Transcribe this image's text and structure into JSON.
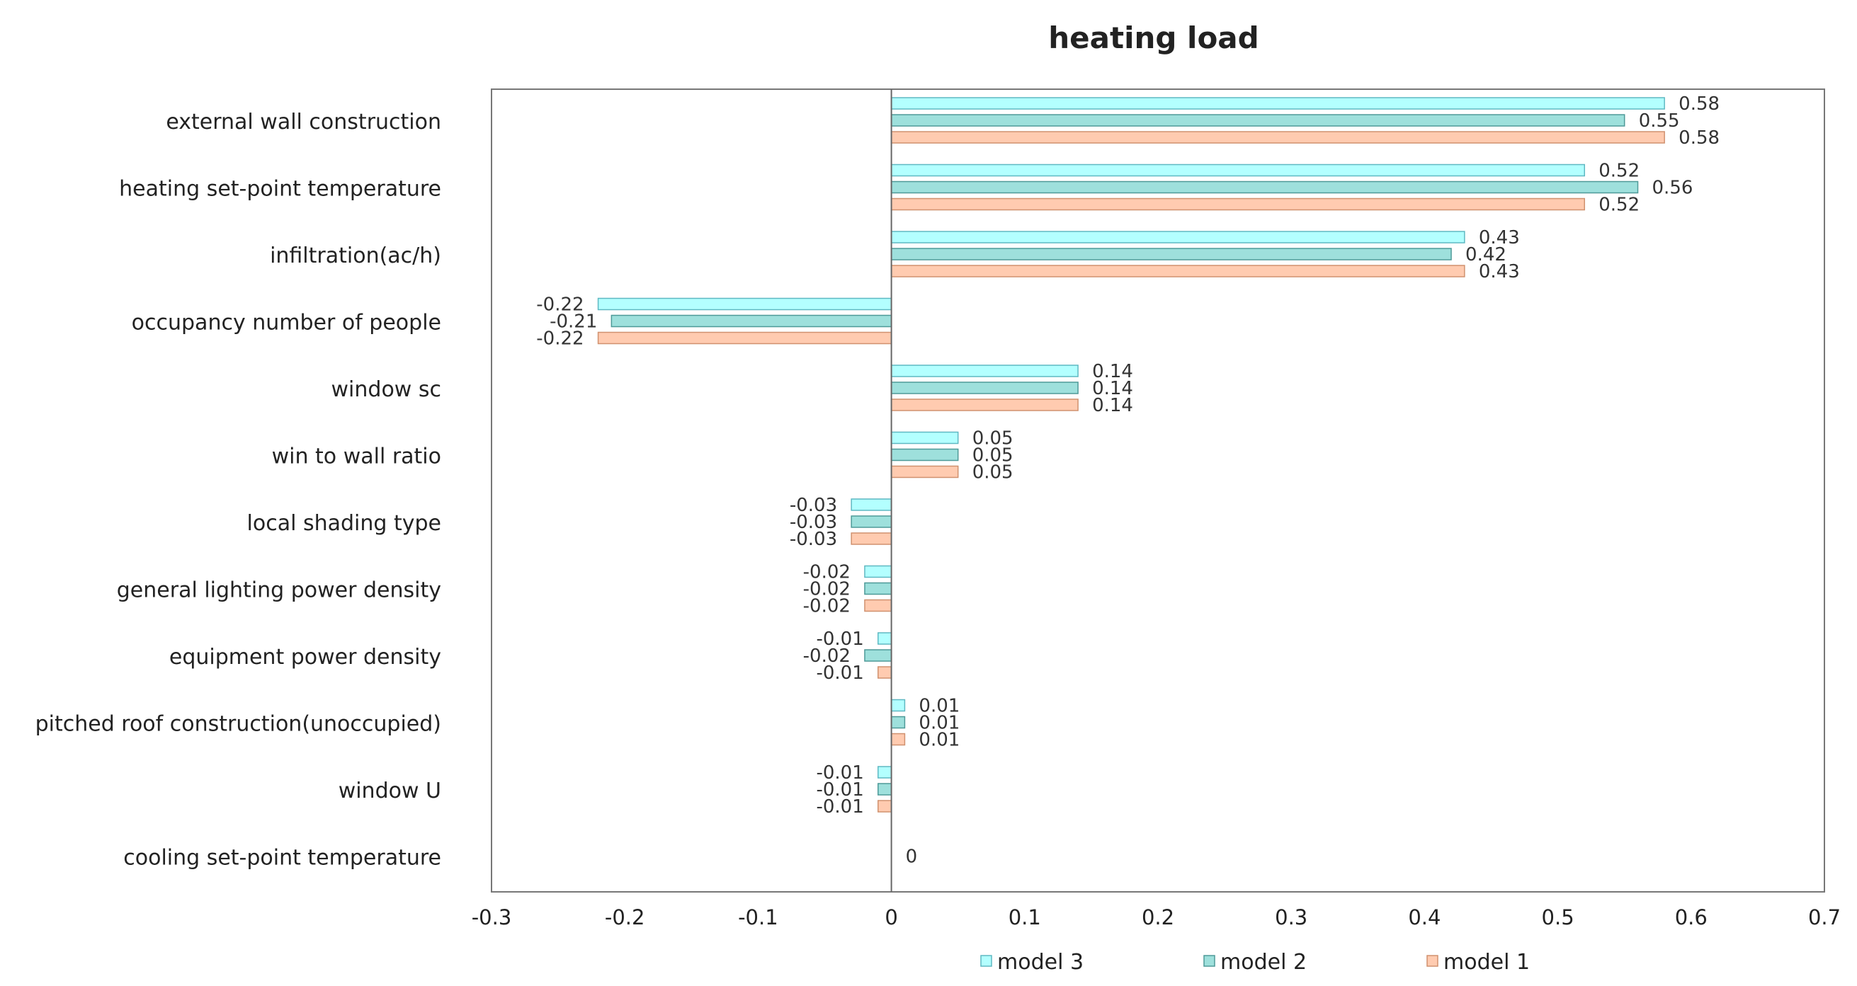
{
  "chart_data": {
    "type": "bar",
    "orientation": "horizontal",
    "title": "heating load",
    "xlabel": "",
    "ylabel": "",
    "xlim": [
      -0.3,
      0.7
    ],
    "xticks": [
      "-0.3",
      "-0.2",
      "-0.1",
      "0",
      "0.1",
      "0.2",
      "0.3",
      "0.4",
      "0.5",
      "0.6",
      "0.7"
    ],
    "grid": false,
    "legend_position": "bottom",
    "categories": [
      "external wall construction",
      "heating set-point temperature",
      "infiltration(ac/h)",
      "occupancy number of people",
      "window sc",
      "win to wall ratio",
      "local shading type",
      "general lighting power density",
      "equipment power density",
      "pitched roof construction(unoccupied)",
      "window U",
      "cooling set-point temperature"
    ],
    "series": [
      {
        "name": "model 3",
        "color": "#b3ffff",
        "stroke": "#5fb8c2",
        "values": [
          0.58,
          0.52,
          0.43,
          -0.22,
          0.14,
          0.05,
          -0.03,
          -0.02,
          -0.01,
          0.01,
          -0.01,
          0
        ],
        "labels": [
          "0.58",
          "0.52",
          "0.43",
          "-0.22",
          "0.14",
          "0.05",
          "-0.03",
          "-0.02",
          "-0.01",
          "0.01",
          "-0.01",
          ""
        ]
      },
      {
        "name": "model 2",
        "color": "#9ee0dc",
        "stroke": "#4e9a98",
        "values": [
          0.55,
          0.56,
          0.42,
          -0.21,
          0.14,
          0.05,
          -0.03,
          -0.02,
          -0.02,
          0.01,
          -0.01,
          0
        ],
        "labels": [
          "0.55",
          "0.56",
          "0.42",
          "-0.21",
          "0.14",
          "0.05",
          "-0.03",
          "-0.02",
          "-0.02",
          "0.01",
          "-0.01",
          "0"
        ]
      },
      {
        "name": "model 1",
        "color": "#ffcbb0",
        "stroke": "#d0916f",
        "values": [
          0.58,
          0.52,
          0.43,
          -0.22,
          0.14,
          0.05,
          -0.03,
          -0.02,
          -0.01,
          0.01,
          -0.01,
          0
        ],
        "labels": [
          "0.58",
          "0.52",
          "0.43",
          "-0.22",
          "0.14",
          "0.05",
          "-0.03",
          "-0.02",
          "-0.01",
          "0.01",
          "-0.01",
          ""
        ]
      }
    ]
  }
}
